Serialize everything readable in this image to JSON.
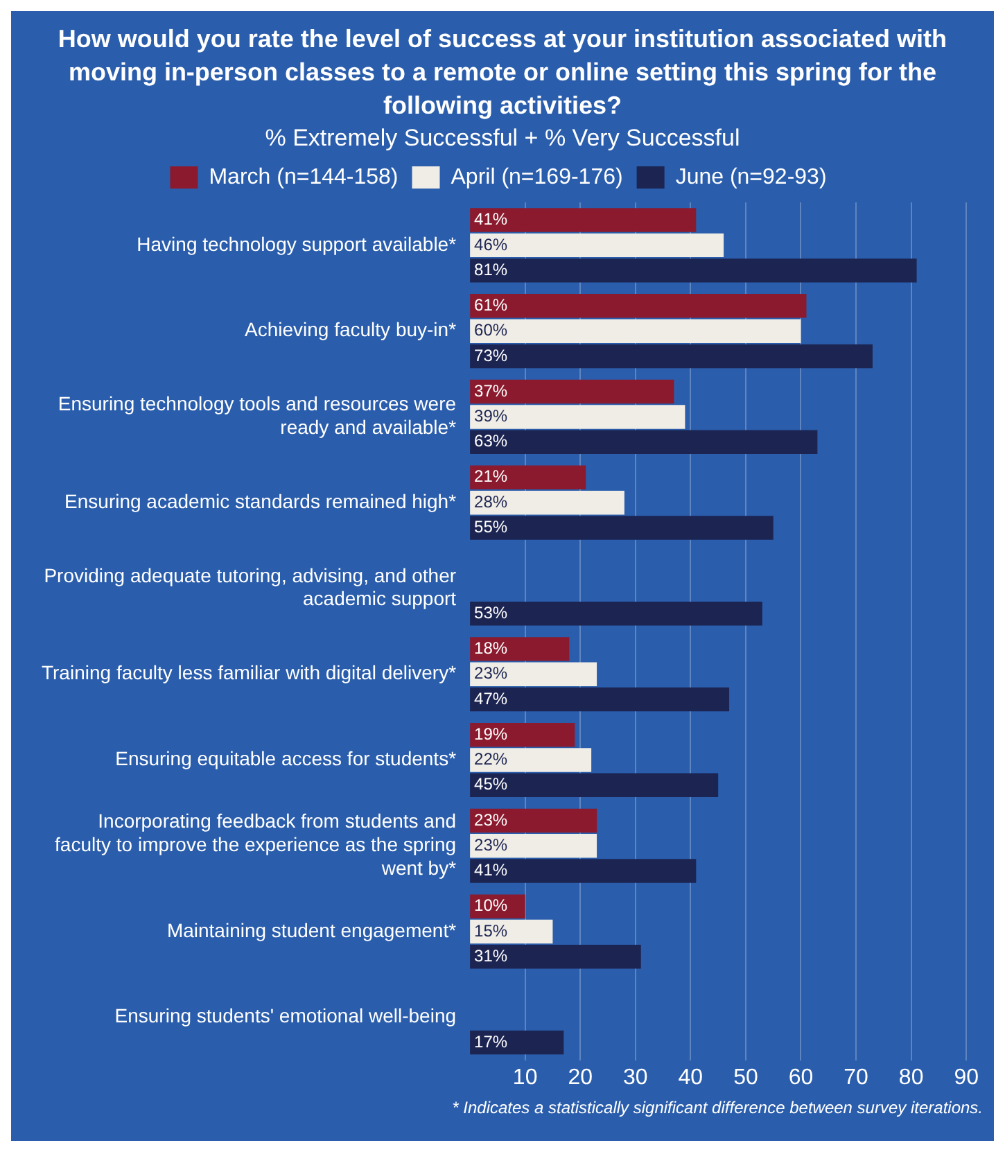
{
  "chart_data": {
    "type": "bar",
    "orientation": "horizontal",
    "title": "How would you rate the level of success at your institution associated with moving in-person classes to a remote or online setting this spring for the following activities?",
    "subtitle": "% Extremely Successful + % Very Successful",
    "categories": [
      "Having technology support available*",
      "Achieving faculty buy-in*",
      "Ensuring technology tools and resources were ready and available*",
      "Ensuring academic standards remained high*",
      "Providing adequate tutoring, advising, and other academic support",
      "Training faculty less familiar with digital delivery*",
      "Ensuring equitable access for students*",
      "Incorporating feedback from students and faculty to improve the experience as the spring went by*",
      "Maintaining student engagement*",
      "Ensuring students' emotional well-being"
    ],
    "series": [
      {
        "name": "March (n=144-158)",
        "color": "#8b1a2e",
        "values": [
          41,
          61,
          37,
          21,
          null,
          18,
          19,
          23,
          10,
          null
        ],
        "value_labels": [
          "41%",
          "61%",
          "37%",
          "21%",
          null,
          "18%",
          "19%",
          "23%",
          "10%",
          null
        ]
      },
      {
        "name": "April (n=169-176)",
        "color": "#f0ede6",
        "values": [
          46,
          60,
          39,
          28,
          null,
          23,
          22,
          23,
          15,
          null
        ],
        "value_labels": [
          "46%",
          "60%",
          "39%",
          "28%",
          null,
          "23%",
          "22%",
          "23%",
          "15%",
          null
        ]
      },
      {
        "name": "June (n=92-93)",
        "color": "#1c2452",
        "values": [
          81,
          73,
          63,
          55,
          53,
          47,
          45,
          41,
          31,
          17
        ],
        "value_labels": [
          "81%",
          "73%",
          "63%",
          "55%",
          "53%",
          "47%",
          "45%",
          "41%",
          "31%",
          "17%"
        ]
      }
    ],
    "xlim": [
      0,
      90
    ],
    "xticks": [
      10,
      20,
      30,
      40,
      50,
      60,
      70,
      80,
      90
    ],
    "grid": "x",
    "legend": "top",
    "annotations": [
      "* Indicates a statistically significant difference between survey iterations."
    ]
  }
}
